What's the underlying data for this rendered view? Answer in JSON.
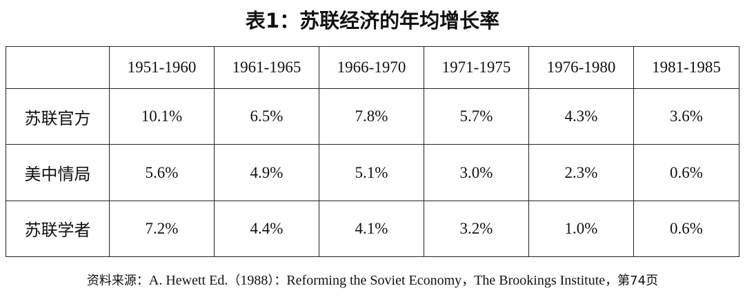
{
  "chart_data": {
    "type": "table",
    "title": "表1：苏联经济的年均增长率",
    "columns": [
      "",
      "1951-1960",
      "1961-1965",
      "1966-1970",
      "1971-1975",
      "1976-1980",
      "1981-1985"
    ],
    "rows": [
      {
        "label": "苏联官方",
        "cells": [
          "10.1%",
          "6.5%",
          "7.8%",
          "5.7%",
          "4.3%",
          "3.6%"
        ]
      },
      {
        "label": "美中情局",
        "cells": [
          "5.6%",
          "4.9%",
          "5.1%",
          "3.0%",
          "2.3%",
          "0.6%"
        ]
      },
      {
        "label": "苏联学者",
        "cells": [
          "7.2%",
          "4.4%",
          "4.1%",
          "3.2%",
          "1.0%",
          "0.6%"
        ]
      }
    ],
    "source": {
      "prefix": "资料来源：",
      "text1": "A. Hewett Ed.",
      "paren_open": "（",
      "year": "1988",
      "paren_close": "）",
      "colon": "：",
      "text2": "Reforming the Soviet Economy",
      "comma1": "，",
      "text3": "The Brookings Institute",
      "comma2": "，",
      "page": "第74页"
    }
  }
}
